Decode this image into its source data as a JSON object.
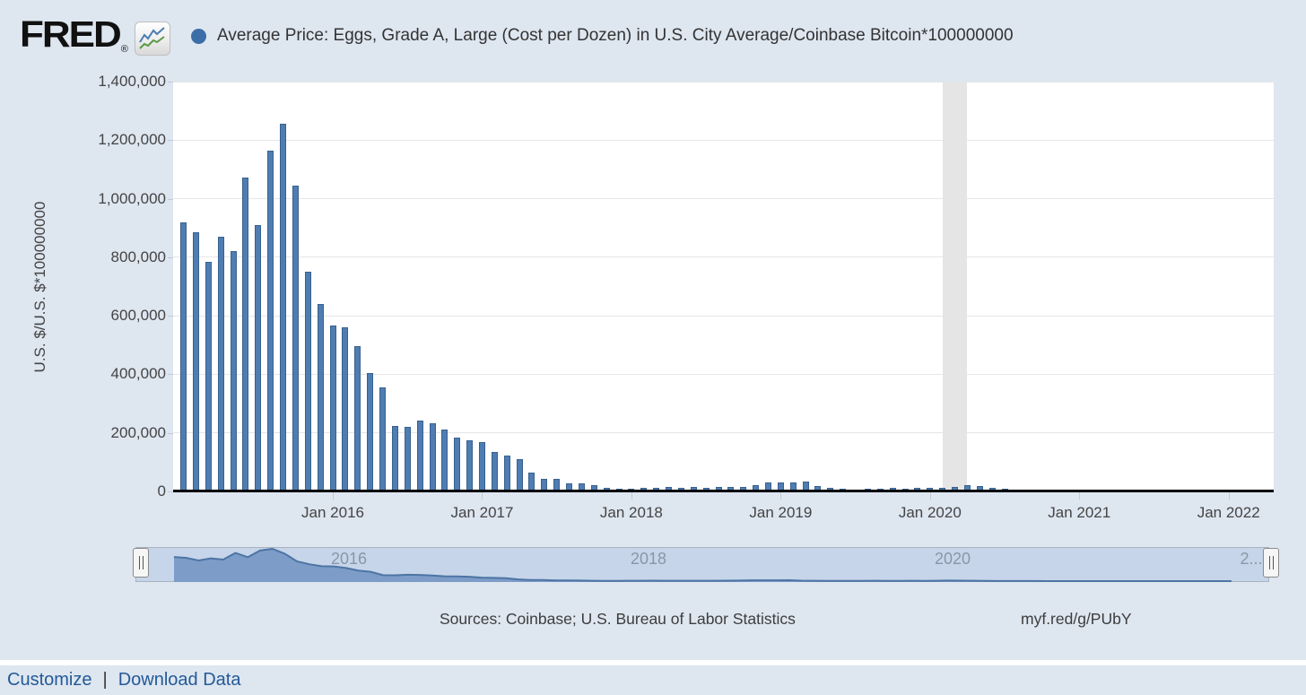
{
  "header": {
    "logo_text": "FRED",
    "logo_reg": "®",
    "legend_label": "Average Price: Eggs, Grade A, Large (Cost per Dozen) in U.S. City Average/Coinbase Bitcoin*100000000"
  },
  "colors": {
    "page_background": "#dee6f0",
    "plot_background": "#ffffff",
    "bar_fill": "#4f7db2",
    "bar_border": "#38618f",
    "legend_dot": "#3b6ea8",
    "gridline": "#e6e6e6",
    "recession_band": "#e5e5e5",
    "navigator_background": "#c6d5e9",
    "navigator_area_fill": "#7d9dc8",
    "navigator_line": "#4d74a4",
    "link_color": "#235a97"
  },
  "chart_data": {
    "type": "bar",
    "series_name": "Average Price: Eggs, Grade A, Large (Cost per Dozen) in U.S. City Average/Coinbase Bitcoin*100000000",
    "ylabel": "U.S. $/U.S. $*100000000",
    "ylim": [
      0,
      1400000
    ],
    "grid": true,
    "y_tick_labels": [
      "0",
      "200,000",
      "400,000",
      "600,000",
      "800,000",
      "1,000,000",
      "1,200,000",
      "1,400,000"
    ],
    "y_tick_values": [
      0,
      200000,
      400000,
      600000,
      800000,
      1000000,
      1200000,
      1400000
    ],
    "x_tick_labels": [
      "Jan 2016",
      "Jan 2017",
      "Jan 2018",
      "Jan 2019",
      "Jan 2020",
      "Jan 2021",
      "Jan 2022"
    ],
    "start_month": "2015-01",
    "frequency": "monthly",
    "values": [
      918000,
      884000,
      785000,
      869000,
      820000,
      1073000,
      911000,
      1163000,
      1255000,
      1046000,
      752000,
      641000,
      568000,
      560000,
      497000,
      404000,
      354000,
      225000,
      221000,
      243000,
      234000,
      212000,
      183000,
      176000,
      167000,
      134000,
      122000,
      111000,
      65000,
      44000,
      42000,
      27000,
      28000,
      20000,
      13000,
      8000,
      9000,
      13000,
      13000,
      16000,
      12000,
      14000,
      13000,
      15000,
      14000,
      16000,
      22000,
      30000,
      32000,
      30000,
      33000,
      18000,
      13000,
      8000,
      7000,
      8000,
      10000,
      12000,
      10000,
      11000,
      12000,
      11000,
      15000,
      22000,
      17000,
      12000,
      10000,
      3000,
      3000,
      2500,
      2000,
      1500,
      1200,
      1000,
      900,
      800,
      900,
      1000,
      1100,
      1200,
      1100,
      1000,
      900,
      1000,
      1100,
      1000,
      900
    ],
    "recession_band": {
      "from_month": "2020-02",
      "to_month": "2020-04"
    },
    "navigator_labels": [
      "2016",
      "2018",
      "2020",
      "2..."
    ],
    "legend_position": "top"
  },
  "footer": {
    "sources": "Sources: Coinbase; U.S. Bureau of Labor Statistics",
    "permalink": "myf.red/g/PUbY"
  },
  "actions": {
    "customize": "Customize",
    "separator": "|",
    "download": "Download Data"
  }
}
